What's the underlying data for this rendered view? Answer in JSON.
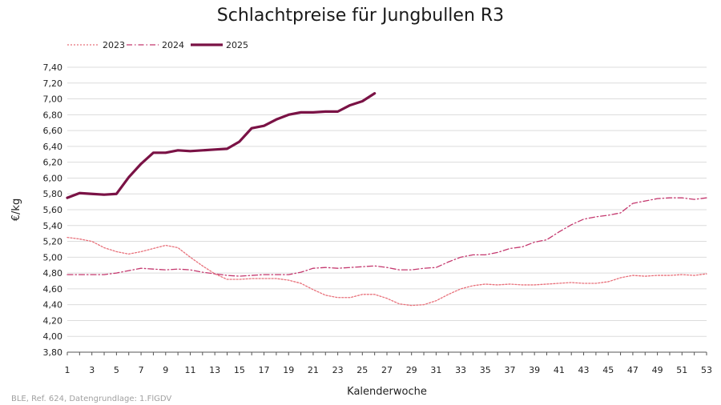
{
  "chart_data": {
    "type": "line",
    "title": "Schlachtpreise für Jungbullen R3",
    "xlabel": "Kalenderwoche",
    "ylabel": "€/kg",
    "xlim": [
      1,
      53
    ],
    "ylim": [
      3.8,
      7.4
    ],
    "x_ticks": [
      "1",
      "3",
      "5",
      "7",
      "9",
      "11",
      "13",
      "15",
      "17",
      "19",
      "21",
      "23",
      "25",
      "27",
      "29",
      "31",
      "33",
      "35",
      "37",
      "39",
      "41",
      "43",
      "45",
      "47",
      "49",
      "51",
      "53"
    ],
    "y_ticks": [
      "3,80",
      "4,00",
      "4,20",
      "4,40",
      "4,60",
      "4,80",
      "5,00",
      "5,20",
      "5,40",
      "5,60",
      "5,80",
      "6,00",
      "6,20",
      "6,40",
      "6,60",
      "6,80",
      "7,00",
      "7,20",
      "7,40"
    ],
    "grid": "horizontal",
    "legend": "top-left",
    "series": [
      {
        "name": "2023",
        "color": "#e8707a",
        "style": "dotted",
        "x": [
          1,
          2,
          3,
          4,
          5,
          6,
          7,
          8,
          9,
          10,
          11,
          12,
          13,
          14,
          15,
          16,
          17,
          18,
          19,
          20,
          21,
          22,
          23,
          24,
          25,
          26,
          27,
          28,
          29,
          30,
          31,
          32,
          33,
          34,
          35,
          36,
          37,
          38,
          39,
          40,
          41,
          42,
          43,
          44,
          45,
          46,
          47,
          48,
          49,
          50,
          51,
          52,
          53
        ],
        "values": [
          5.25,
          5.23,
          5.2,
          5.12,
          5.07,
          5.04,
          5.07,
          5.11,
          5.15,
          5.12,
          5.0,
          4.89,
          4.79,
          4.72,
          4.72,
          4.73,
          4.73,
          4.73,
          4.71,
          4.67,
          4.59,
          4.52,
          4.49,
          4.49,
          4.53,
          4.53,
          4.48,
          4.41,
          4.39,
          4.4,
          4.45,
          4.53,
          4.6,
          4.64,
          4.66,
          4.65,
          4.66,
          4.65,
          4.65,
          4.66,
          4.67,
          4.68,
          4.67,
          4.67,
          4.69,
          4.74,
          4.77,
          4.76,
          4.77,
          4.77,
          4.78,
          4.77,
          4.79
        ]
      },
      {
        "name": "2024",
        "color": "#c4386e",
        "style": "dash-dot",
        "x": [
          1,
          2,
          3,
          4,
          5,
          6,
          7,
          8,
          9,
          10,
          11,
          12,
          13,
          14,
          15,
          16,
          17,
          18,
          19,
          20,
          21,
          22,
          23,
          24,
          25,
          26,
          27,
          28,
          29,
          30,
          31,
          32,
          33,
          34,
          35,
          36,
          37,
          38,
          39,
          40,
          41,
          42,
          43,
          44,
          45,
          46,
          47,
          48,
          49,
          50,
          51,
          52,
          53
        ],
        "values": [
          4.78,
          4.78,
          4.78,
          4.78,
          4.8,
          4.83,
          4.86,
          4.85,
          4.84,
          4.85,
          4.84,
          4.81,
          4.79,
          4.77,
          4.76,
          4.77,
          4.78,
          4.78,
          4.78,
          4.81,
          4.86,
          4.87,
          4.86,
          4.87,
          4.88,
          4.89,
          4.87,
          4.84,
          4.84,
          4.86,
          4.87,
          4.94,
          5.0,
          5.03,
          5.03,
          5.06,
          5.11,
          5.13,
          5.19,
          5.22,
          5.32,
          5.41,
          5.48,
          5.51,
          5.53,
          5.56,
          5.68,
          5.71,
          5.74,
          5.75,
          5.75,
          5.73,
          5.75
        ]
      },
      {
        "name": "2025",
        "color": "#7a1245",
        "style": "solid",
        "x": [
          1,
          2,
          3,
          4,
          5,
          6,
          7,
          8,
          9,
          10,
          11,
          12,
          13,
          14,
          15,
          16,
          17,
          18,
          19,
          20,
          21,
          22,
          23,
          24,
          25,
          26
        ],
        "values": [
          5.75,
          5.81,
          5.8,
          5.79,
          5.8,
          6.01,
          6.18,
          6.32,
          6.32,
          6.35,
          6.34,
          6.35,
          6.36,
          6.37,
          6.46,
          6.63,
          6.66,
          6.74,
          6.8,
          6.83,
          6.83,
          6.84,
          6.84,
          6.92,
          6.97,
          7.07
        ]
      }
    ]
  },
  "source_note": "BLE, Ref. 624, Datengrundlage: 1.FlGDV"
}
